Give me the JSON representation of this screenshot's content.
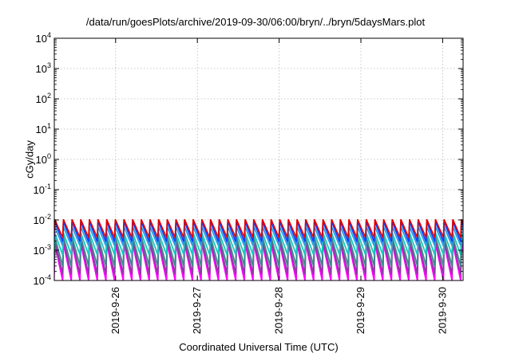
{
  "chart_data": {
    "type": "line",
    "title": "/data/run/goesPlots/archive/2019-09-30/06:00/bryn/../bryn/5daysMars.plot",
    "xlabel": "Coordinated Universal Time (UTC)",
    "ylabel": "cGy/day",
    "y_scale": "log",
    "ylim": [
      0.0001,
      10000
    ],
    "y_ticks": [
      {
        "exp": "-4",
        "value": 0.0001
      },
      {
        "exp": "-3",
        "value": 0.001
      },
      {
        "exp": "-2",
        "value": 0.01
      },
      {
        "exp": "-1",
        "value": 0.1
      },
      {
        "exp": "0",
        "value": 1
      },
      {
        "exp": "1",
        "value": 10
      },
      {
        "exp": "2",
        "value": 100
      },
      {
        "exp": "3",
        "value": 1000
      },
      {
        "exp": "4",
        "value": 10000
      }
    ],
    "y_tick_base": "10",
    "xlim": [
      "2019-09-25 06:00",
      "2019-09-30 06:00"
    ],
    "x_ticks": [
      "2019-9-26",
      "2019-9-27",
      "2019-9-28",
      "2019-9-29",
      "2019-9-30"
    ],
    "grid": true,
    "legend": "none",
    "sawtooth_period_hours": 2.54,
    "series_colors": [
      "#e00000",
      "#1040ff",
      "#2a9de0",
      "#18c8c0",
      "#3a8a8a",
      "#8a3aa0",
      "#ff00ff"
    ],
    "series": [
      {
        "color": "#e00000",
        "peak": 0.0105,
        "trough": 0.0026
      },
      {
        "color": "#1040ff",
        "peak": 0.0088,
        "trough": 0.0019
      },
      {
        "color": "#2a9de0",
        "peak": 0.006,
        "trough": 0.0014
      },
      {
        "color": "#18c8c0",
        "peak": 0.0038,
        "trough": 0.0007
      },
      {
        "color": "#3a8a8a",
        "peak": 0.0028,
        "trough": 0.0003
      },
      {
        "color": "#8a3aa0",
        "peak": 0.0022,
        "trough": 0.00016
      },
      {
        "color": "#ff00ff",
        "peak": 0.0017,
        "trough": 0.0001
      }
    ]
  }
}
